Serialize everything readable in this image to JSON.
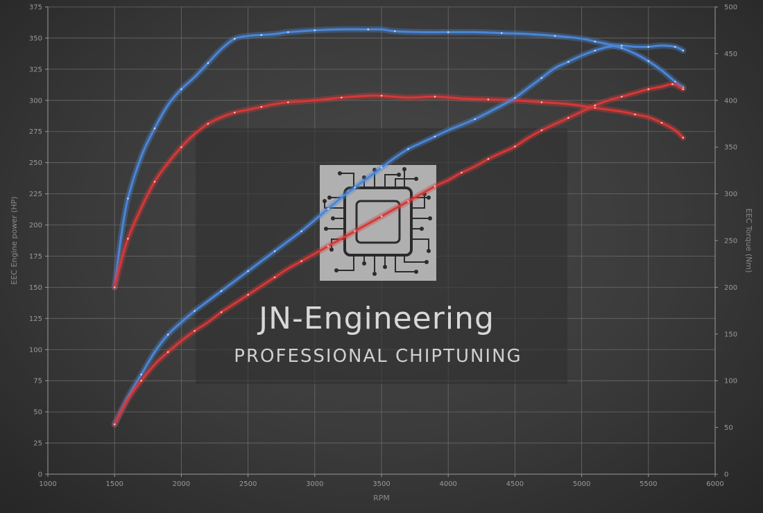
{
  "chart_data": {
    "type": "line",
    "xlabel": "RPM",
    "ylabel_left": "EEC Engine power (HP)",
    "ylabel_right": "EEC Torque (Nm)",
    "x_range": [
      1000,
      6000
    ],
    "x_ticks": [
      1000,
      1500,
      2000,
      2500,
      3000,
      3500,
      4000,
      4500,
      5000,
      5500,
      6000
    ],
    "y_left_range": [
      0,
      375
    ],
    "y_left_ticks": [
      0,
      25,
      50,
      75,
      100,
      125,
      150,
      175,
      200,
      225,
      250,
      275,
      300,
      325,
      350,
      375
    ],
    "y_right_range": [
      0,
      500
    ],
    "y_right_ticks": [
      0,
      50,
      100,
      150,
      200,
      250,
      300,
      350,
      400,
      450,
      500
    ],
    "grid": true,
    "series": [
      {
        "axis": "right",
        "color": "#4a86d8",
        "points": [
          [
            1500,
            200
          ],
          [
            1550,
            255
          ],
          [
            1600,
            295
          ],
          [
            1700,
            340
          ],
          [
            1800,
            370
          ],
          [
            1900,
            395
          ],
          [
            2000,
            412
          ],
          [
            2100,
            425
          ],
          [
            2200,
            440
          ],
          [
            2300,
            455
          ],
          [
            2400,
            466
          ],
          [
            2500,
            469
          ],
          [
            2600,
            470
          ],
          [
            2700,
            471
          ],
          [
            2800,
            473
          ],
          [
            2900,
            474
          ],
          [
            3000,
            475
          ],
          [
            3200,
            476
          ],
          [
            3400,
            476
          ],
          [
            3500,
            476
          ],
          [
            3600,
            474
          ],
          [
            3800,
            473
          ],
          [
            4000,
            473
          ],
          [
            4200,
            473
          ],
          [
            4400,
            472
          ],
          [
            4600,
            471
          ],
          [
            4800,
            469
          ],
          [
            5000,
            466
          ],
          [
            5100,
            463
          ],
          [
            5200,
            460
          ],
          [
            5300,
            456
          ],
          [
            5400,
            450
          ],
          [
            5500,
            442
          ],
          [
            5600,
            432
          ],
          [
            5700,
            420
          ],
          [
            5760,
            414
          ]
        ]
      },
      {
        "axis": "right",
        "color": "#d63838",
        "points": [
          [
            1500,
            200
          ],
          [
            1550,
            228
          ],
          [
            1600,
            252
          ],
          [
            1700,
            285
          ],
          [
            1800,
            313
          ],
          [
            1900,
            333
          ],
          [
            2000,
            350
          ],
          [
            2100,
            364
          ],
          [
            2200,
            375
          ],
          [
            2300,
            382
          ],
          [
            2400,
            387
          ],
          [
            2500,
            390
          ],
          [
            2600,
            393
          ],
          [
            2700,
            396
          ],
          [
            2800,
            398
          ],
          [
            3000,
            400
          ],
          [
            3200,
            403
          ],
          [
            3400,
            405
          ],
          [
            3500,
            405
          ],
          [
            3700,
            403
          ],
          [
            3900,
            404
          ],
          [
            4100,
            402
          ],
          [
            4300,
            401
          ],
          [
            4500,
            400
          ],
          [
            4700,
            398
          ],
          [
            4900,
            396
          ],
          [
            5100,
            392
          ],
          [
            5300,
            388
          ],
          [
            5400,
            385
          ],
          [
            5500,
            382
          ],
          [
            5600,
            376
          ],
          [
            5700,
            368
          ],
          [
            5760,
            360
          ]
        ]
      },
      {
        "axis": "left",
        "color": "#4a86d8",
        "points": [
          [
            1500,
            40
          ],
          [
            1600,
            62
          ],
          [
            1700,
            80
          ],
          [
            1800,
            98
          ],
          [
            1900,
            112
          ],
          [
            2000,
            122
          ],
          [
            2100,
            131
          ],
          [
            2200,
            139
          ],
          [
            2300,
            147
          ],
          [
            2400,
            155
          ],
          [
            2500,
            163
          ],
          [
            2600,
            171
          ],
          [
            2700,
            179
          ],
          [
            2800,
            187
          ],
          [
            2900,
            195
          ],
          [
            3000,
            204
          ],
          [
            3100,
            213
          ],
          [
            3200,
            222
          ],
          [
            3300,
            230
          ],
          [
            3400,
            238
          ],
          [
            3500,
            246
          ],
          [
            3600,
            254
          ],
          [
            3700,
            261
          ],
          [
            3800,
            266
          ],
          [
            3900,
            271
          ],
          [
            4000,
            276
          ],
          [
            4200,
            285
          ],
          [
            4400,
            296
          ],
          [
            4500,
            302
          ],
          [
            4600,
            310
          ],
          [
            4700,
            318
          ],
          [
            4800,
            326
          ],
          [
            4900,
            331
          ],
          [
            5000,
            336
          ],
          [
            5100,
            340
          ],
          [
            5200,
            343
          ],
          [
            5300,
            344
          ],
          [
            5400,
            343
          ],
          [
            5500,
            343
          ],
          [
            5600,
            344
          ],
          [
            5700,
            343
          ],
          [
            5760,
            340
          ]
        ]
      },
      {
        "axis": "left",
        "color": "#d63838",
        "points": [
          [
            1500,
            40
          ],
          [
            1600,
            60
          ],
          [
            1700,
            75
          ],
          [
            1800,
            88
          ],
          [
            1900,
            98
          ],
          [
            2000,
            107
          ],
          [
            2100,
            115
          ],
          [
            2200,
            122
          ],
          [
            2300,
            130
          ],
          [
            2400,
            137
          ],
          [
            2500,
            144
          ],
          [
            2600,
            151
          ],
          [
            2700,
            158
          ],
          [
            2800,
            165
          ],
          [
            2900,
            171
          ],
          [
            3000,
            177
          ],
          [
            3100,
            183
          ],
          [
            3200,
            189
          ],
          [
            3300,
            195
          ],
          [
            3400,
            201
          ],
          [
            3500,
            207
          ],
          [
            3600,
            213
          ],
          [
            3700,
            219
          ],
          [
            3800,
            225
          ],
          [
            3900,
            231
          ],
          [
            4000,
            236
          ],
          [
            4100,
            242
          ],
          [
            4200,
            247
          ],
          [
            4300,
            253
          ],
          [
            4400,
            258
          ],
          [
            4500,
            263
          ],
          [
            4600,
            270
          ],
          [
            4700,
            276
          ],
          [
            4800,
            281
          ],
          [
            4900,
            286
          ],
          [
            5000,
            291
          ],
          [
            5100,
            296
          ],
          [
            5200,
            300
          ],
          [
            5300,
            303
          ],
          [
            5400,
            306
          ],
          [
            5500,
            309
          ],
          [
            5600,
            311
          ],
          [
            5680,
            313
          ],
          [
            5760,
            309
          ]
        ]
      }
    ]
  },
  "watermark": {
    "name": "JN-Engineering",
    "tagline": "PROFESSIONAL CHIPTUNING",
    "logo_icon": "circuit-chip-icon"
  }
}
